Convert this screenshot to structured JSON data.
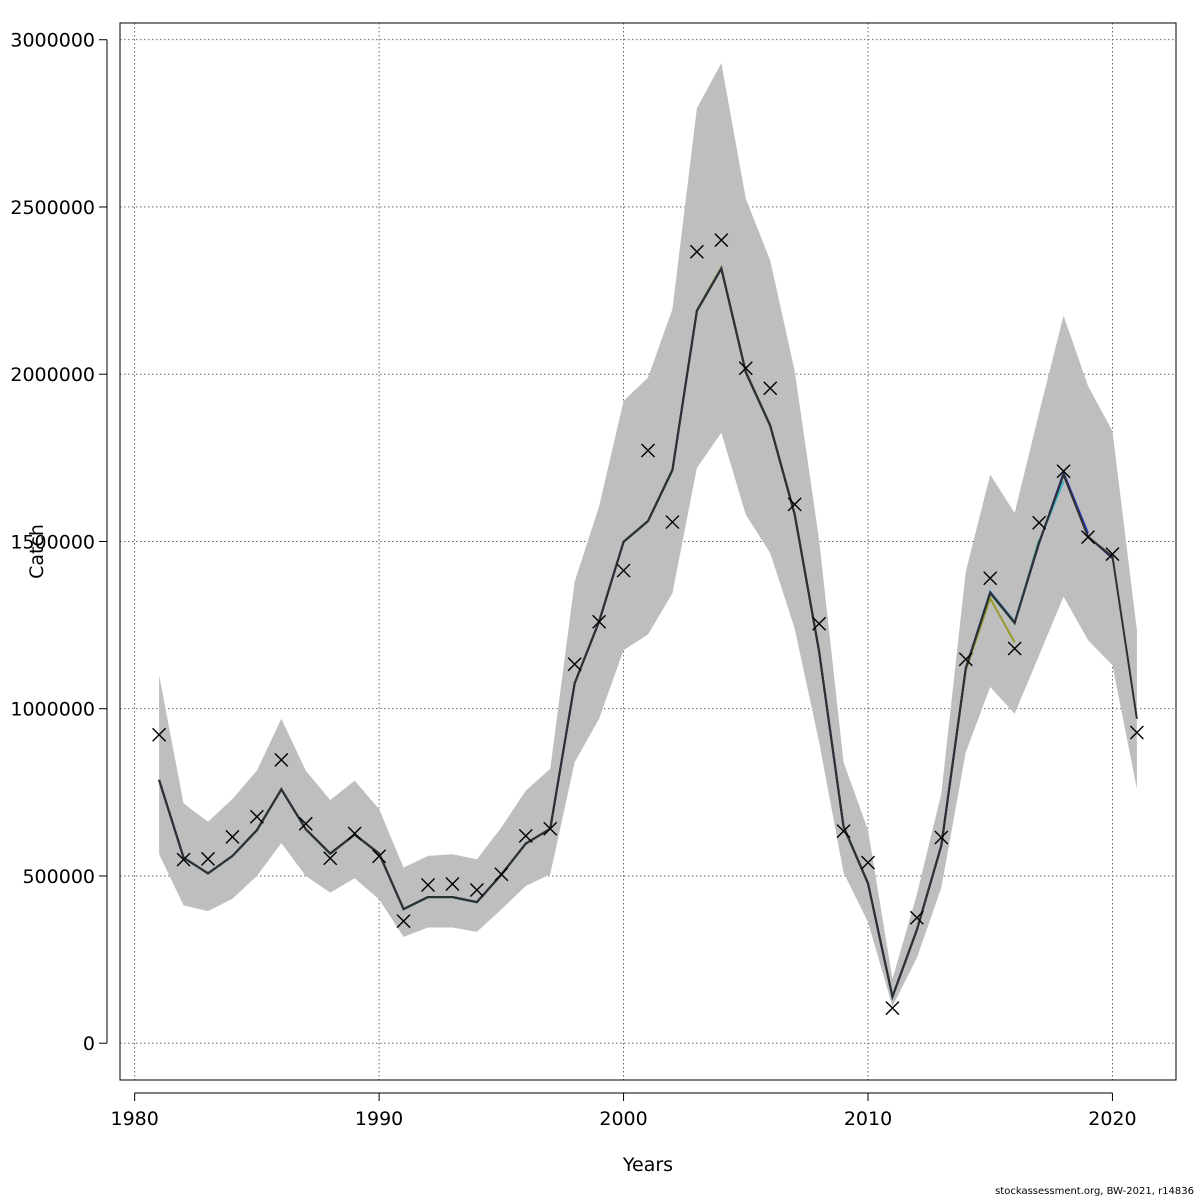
{
  "footer": "stockassessment.org, BW-2021, r14836",
  "chart_data": {
    "type": "line",
    "xlabel": "Years",
    "ylabel": "Catch",
    "xlim": [
      1979.4,
      2022.6
    ],
    "ylim": [
      -110000,
      3050000
    ],
    "xticks": [
      1980,
      1990,
      2000,
      2010,
      2020
    ],
    "yticks": [
      0,
      500000,
      1000000,
      1500000,
      2000000,
      2500000,
      3000000
    ],
    "grid": true,
    "band_color": "#bebebe",
    "observed_marker": "x",
    "years": [
      1981,
      1982,
      1983,
      1984,
      1985,
      1986,
      1987,
      1988,
      1989,
      1990,
      1991,
      1992,
      1993,
      1994,
      1995,
      1996,
      1997,
      1998,
      1999,
      2000,
      2001,
      2002,
      2003,
      2004,
      2005,
      2006,
      2007,
      2008,
      2009,
      2010,
      2011,
      2012,
      2013,
      2014,
      2015,
      2016,
      2017,
      2018,
      2019,
      2020,
      2021
    ],
    "confidence_band": {
      "lower": [
        565000,
        412000,
        395000,
        432000,
        500000,
        598000,
        500000,
        450000,
        493000,
        430000,
        318000,
        346000,
        346000,
        333000,
        400000,
        470000,
        505000,
        840000,
        970000,
        1175000,
        1222000,
        1345000,
        1720000,
        1825000,
        1580000,
        1465000,
        1240000,
        900000,
        510000,
        362000,
        110000,
        255000,
        465000,
        870000,
        1065000,
        985000,
        1160000,
        1335000,
        1205000,
        1130000,
        760000
      ],
      "upper": [
        1100000,
        717000,
        662000,
        730000,
        815000,
        970000,
        815000,
        727000,
        785000,
        700000,
        525000,
        560000,
        565000,
        550000,
        645000,
        755000,
        820000,
        1380000,
        1605000,
        1920000,
        1990000,
        2195000,
        2795000,
        2930000,
        2525000,
        2340000,
        2010000,
        1505000,
        840000,
        637000,
        192000,
        445000,
        747000,
        1410000,
        1700000,
        1585000,
        1885000,
        2175000,
        1965000,
        1830000,
        1235000
      ]
    },
    "series": [
      {
        "color": "#9a9a2c",
        "values": [
          788000,
          555000,
          508000,
          560000,
          638000,
          760000,
          640000,
          568000,
          625000,
          568000,
          401000,
          437000,
          437000,
          422000,
          505000,
          597000,
          642000,
          1077000,
          1262000,
          1500000,
          1562000,
          1716000,
          2192000,
          2320000,
          2010000,
          1849000,
          1585000,
          1175000,
          650000,
          480000,
          140000,
          340000,
          592000,
          1115000,
          1330000,
          1198000
        ]
      },
      {
        "color": "#2e8b57",
        "values": [
          786000,
          554000,
          507000,
          559000,
          636000,
          758000,
          639000,
          566000,
          623000,
          566000,
          400000,
          436000,
          436000,
          421000,
          503000,
          596000,
          641000,
          1075000,
          1260000,
          1498000,
          1560000,
          1712000,
          2188000,
          2315000,
          2005000,
          1845000,
          1580000,
          1170000,
          646000,
          477000,
          138000,
          338000,
          590000,
          1120000,
          1345000,
          1255000,
          1505000
        ]
      },
      {
        "color": "#3cb4c8",
        "values": [
          787000,
          555000,
          508000,
          560000,
          637000,
          759000,
          640000,
          567000,
          624000,
          567000,
          401000,
          437000,
          437000,
          422000,
          504000,
          597000,
          641000,
          1076000,
          1261000,
          1499000,
          1561000,
          1714000,
          2190000,
          2317000,
          2007000,
          1847000,
          1582000,
          1172000,
          648000,
          479000,
          139000,
          339000,
          591000,
          1122000,
          1350000,
          1260000,
          1500000,
          1680000
        ]
      },
      {
        "color": "#2a3fc4",
        "values": [
          787000,
          555000,
          508000,
          560000,
          637000,
          759000,
          640000,
          567000,
          624000,
          567000,
          401000,
          437000,
          437000,
          422000,
          504000,
          597000,
          641000,
          1076000,
          1261000,
          1499000,
          1561000,
          1714000,
          2190000,
          2316000,
          2006000,
          1846000,
          1581000,
          1171000,
          647000,
          478000,
          139000,
          339000,
          591000,
          1121000,
          1348000,
          1258000,
          1495000,
          1705000,
          1525000
        ]
      },
      {
        "color": "#23236e",
        "values": [
          787000,
          555000,
          508000,
          560000,
          637000,
          759000,
          640000,
          567000,
          624000,
          567000,
          401000,
          437000,
          437000,
          422000,
          504000,
          597000,
          641000,
          1076000,
          1261000,
          1499000,
          1561000,
          1714000,
          2190000,
          2316000,
          2006000,
          1846000,
          1581000,
          1171000,
          647000,
          478000,
          139000,
          339000,
          591000,
          1121000,
          1347000,
          1257000,
          1496000,
          1700000,
          1515000,
          1450000
        ]
      },
      {
        "color": "#303030",
        "values": [
          787000,
          555000,
          508000,
          560000,
          637000,
          759000,
          640000,
          567000,
          624000,
          567000,
          401000,
          437000,
          437000,
          422000,
          504000,
          597000,
          641000,
          1076000,
          1261000,
          1499000,
          1561000,
          1714000,
          2190000,
          2316000,
          2006000,
          1846000,
          1581000,
          1171000,
          647000,
          478000,
          139000,
          339000,
          591000,
          1121000,
          1347000,
          1257000,
          1496000,
          1700000,
          1514000,
          1455000,
          970000
        ]
      }
    ],
    "observed": [
      922000,
      549000,
      551000,
      617000,
      677000,
      847000,
      656000,
      553000,
      627000,
      559000,
      365000,
      473000,
      476000,
      458000,
      505000,
      620000,
      641000,
      1133000,
      1260000,
      1413000,
      1772000,
      1558000,
      2366000,
      2401000,
      2018000,
      1958000,
      1611000,
      1254000,
      634000,
      540000,
      105000,
      375000,
      615000,
      1148000,
      1390000,
      1180000,
      1556000,
      1710000,
      1513000,
      1462000,
      929000
    ]
  }
}
